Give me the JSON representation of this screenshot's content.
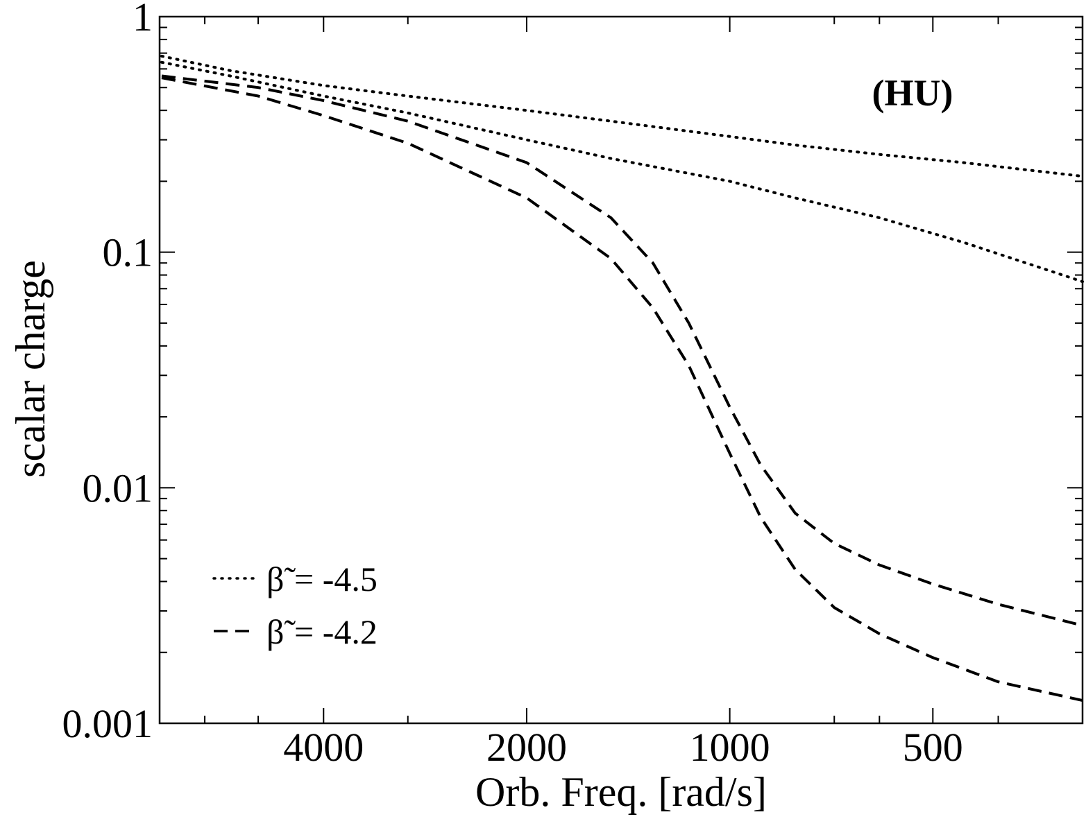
{
  "chart_data": {
    "type": "line",
    "title": "",
    "xlabel": "Orb. Freq. [rad/s]",
    "ylabel": "scalar charge",
    "x_scale": "log",
    "x_reversed": true,
    "y_scale": "log",
    "xlim": [
      7000,
      300
    ],
    "ylim": [
      0.001,
      1
    ],
    "x_ticks": [
      {
        "value": 4000,
        "label": "4000"
      },
      {
        "value": 2000,
        "label": "2000"
      },
      {
        "value": 1000,
        "label": "1000"
      },
      {
        "value": 500,
        "label": "500"
      }
    ],
    "y_ticks": [
      {
        "value": 1,
        "label": "1"
      },
      {
        "value": 0.1,
        "label": "0.1"
      },
      {
        "value": 0.01,
        "label": "0.01"
      },
      {
        "value": 0.001,
        "label": "0.001"
      }
    ],
    "annotation": "(HU)",
    "legend": {
      "placement": "bottom-left",
      "entries": [
        {
          "label": "= -4.5",
          "symbol": "β̃",
          "style": "dotted"
        },
        {
          "label": "= -4.2",
          "symbol": "β̃",
          "style": "dashed"
        }
      ]
    },
    "series": [
      {
        "group": "β̃ = -4.5",
        "style": "dotted",
        "x": [
          6950,
          5500,
          4000,
          3000,
          2000,
          1500,
          1000,
          800,
          600,
          450,
          300
        ],
        "y": [
          0.68,
          0.59,
          0.51,
          0.46,
          0.4,
          0.36,
          0.31,
          0.285,
          0.26,
          0.24,
          0.21
        ]
      },
      {
        "group": "β̃ = -4.5",
        "style": "dotted",
        "x": [
          6950,
          5500,
          4000,
          3000,
          2000,
          1500,
          1000,
          800,
          600,
          450,
          300
        ],
        "y": [
          0.64,
          0.56,
          0.46,
          0.39,
          0.3,
          0.25,
          0.2,
          0.17,
          0.14,
          0.11,
          0.075
        ]
      },
      {
        "group": "β̃ = -4.2",
        "style": "dashed",
        "x": [
          6950,
          5000,
          4000,
          3000,
          2000,
          1500,
          1300,
          1150,
          1000,
          900,
          800,
          700,
          600,
          500,
          400,
          300
        ],
        "y": [
          0.56,
          0.5,
          0.44,
          0.36,
          0.24,
          0.14,
          0.09,
          0.05,
          0.022,
          0.0125,
          0.0078,
          0.0058,
          0.0047,
          0.0039,
          0.0032,
          0.0026
        ]
      },
      {
        "group": "β̃ = -4.2",
        "style": "dashed",
        "x": [
          6950,
          5000,
          4000,
          3000,
          2000,
          1500,
          1300,
          1150,
          1000,
          900,
          800,
          700,
          600,
          500,
          400,
          300
        ],
        "y": [
          0.55,
          0.46,
          0.38,
          0.29,
          0.17,
          0.094,
          0.058,
          0.033,
          0.014,
          0.0075,
          0.0045,
          0.0031,
          0.0024,
          0.0019,
          0.0015,
          0.00125
        ]
      }
    ]
  }
}
